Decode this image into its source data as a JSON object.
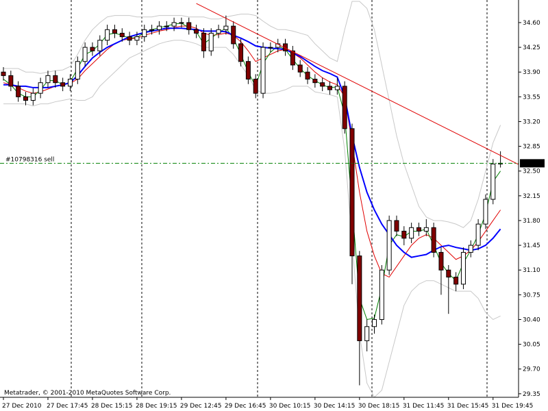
{
  "chart_data": {
    "type": "candlestick",
    "categories": [
      "27 Dec 2010",
      null,
      null,
      null,
      null,
      null,
      "27 Dec 17:45",
      null,
      null,
      null,
      null,
      null,
      "28 Dec 15:15",
      null,
      null,
      null,
      null,
      null,
      "28 Dec 19:15",
      null,
      null,
      null,
      null,
      null,
      "29 Dec 12:45",
      null,
      null,
      null,
      null,
      null,
      "29 Dec 16:45",
      null,
      null,
      null,
      null,
      null,
      "30 Dec 10:15",
      null,
      null,
      null,
      null,
      null,
      "30 Dec 14:15",
      null,
      null,
      null,
      null,
      null,
      "30 Dec 18:15",
      null,
      null,
      null,
      null,
      null,
      "31 Dec 11:45",
      null,
      null,
      null,
      null,
      null,
      "31 Dec 15:45",
      null,
      null,
      null,
      null,
      null,
      "31 Dec 19:45",
      null
    ],
    "open": [
      33.9,
      33.85,
      33.7,
      33.55,
      33.5,
      33.6,
      33.75,
      33.85,
      33.75,
      33.7,
      33.8,
      34.05,
      34.25,
      34.2,
      34.35,
      34.5,
      34.45,
      34.4,
      34.35,
      34.4,
      34.5,
      34.5,
      34.55,
      34.55,
      34.6,
      34.6,
      34.5,
      34.45,
      34.2,
      34.45,
      34.5,
      34.55,
      34.3,
      34.05,
      33.8,
      33.6,
      34.25,
      34.25,
      34.3,
      34.2,
      34.0,
      33.9,
      33.8,
      33.75,
      33.7,
      33.65,
      33.7,
      33.1,
      31.3,
      30.1,
      30.3,
      30.4,
      31.1,
      31.8,
      31.65,
      31.55,
      31.7,
      31.65,
      31.7,
      31.35,
      31.1,
      31.0,
      30.9,
      31.35,
      31.45,
      31.75,
      32.1,
      32.6
    ],
    "high": [
      33.97,
      33.92,
      33.77,
      33.62,
      33.67,
      33.82,
      33.92,
      33.92,
      33.82,
      33.87,
      34.12,
      34.32,
      34.32,
      34.42,
      34.57,
      34.57,
      34.52,
      34.47,
      34.47,
      34.57,
      34.57,
      34.62,
      34.62,
      34.67,
      34.67,
      34.67,
      34.57,
      34.52,
      34.52,
      34.57,
      34.7,
      34.62,
      34.37,
      34.12,
      33.87,
      34.32,
      34.32,
      34.37,
      34.37,
      34.27,
      34.07,
      33.97,
      33.87,
      33.82,
      33.77,
      33.82,
      33.77,
      33.17,
      31.37,
      30.4,
      30.47,
      31.17,
      31.87,
      31.87,
      31.72,
      31.77,
      31.77,
      31.82,
      31.77,
      31.42,
      31.17,
      31.07,
      31.42,
      31.52,
      31.82,
      32.17,
      32.67,
      32.78
    ],
    "low": [
      33.78,
      33.63,
      33.48,
      33.43,
      33.43,
      33.53,
      33.68,
      33.68,
      33.63,
      33.63,
      33.73,
      33.98,
      34.13,
      34.13,
      34.28,
      34.38,
      34.33,
      34.28,
      34.28,
      34.33,
      34.43,
      34.43,
      34.48,
      34.48,
      34.53,
      34.43,
      34.38,
      34.1,
      34.13,
      34.38,
      34.43,
      34.23,
      33.98,
      33.73,
      33.53,
      33.53,
      34.18,
      34.18,
      34.13,
      33.93,
      33.83,
      33.73,
      33.68,
      33.63,
      33.58,
      33.58,
      33.03,
      30.9,
      29.47,
      29.95,
      30.2,
      30.33,
      31.03,
      31.58,
      31.45,
      31.48,
      31.58,
      31.58,
      31.28,
      30.75,
      30.48,
      30.8,
      30.83,
      31.28,
      31.38,
      31.68,
      32.03,
      32.55
    ],
    "close": [
      33.85,
      33.7,
      33.55,
      33.5,
      33.6,
      33.75,
      33.85,
      33.75,
      33.7,
      33.8,
      34.05,
      34.25,
      34.2,
      34.35,
      34.5,
      34.45,
      34.4,
      34.35,
      34.4,
      34.5,
      34.5,
      34.55,
      34.55,
      34.6,
      34.6,
      34.5,
      34.45,
      34.2,
      34.45,
      34.5,
      34.55,
      34.3,
      34.05,
      33.8,
      33.6,
      34.25,
      34.25,
      34.3,
      34.2,
      34.0,
      33.9,
      33.8,
      33.75,
      33.7,
      33.65,
      33.7,
      33.1,
      31.3,
      30.1,
      30.3,
      30.4,
      31.1,
      31.8,
      31.65,
      31.55,
      31.7,
      31.65,
      31.7,
      31.35,
      31.1,
      31.0,
      30.9,
      31.35,
      31.45,
      31.75,
      32.1,
      32.6,
      32.61
    ],
    "up_color": "#ffffff",
    "down_color": "#800000",
    "wick_color": "#000000",
    "series": [
      {
        "color": "#c8c8c8",
        "width": 1,
        "values": [
          33.95,
          33.95,
          33.95,
          33.9,
          33.9,
          33.88,
          33.9,
          33.92,
          33.93,
          33.98,
          34.15,
          34.35,
          34.5,
          34.6,
          34.68,
          34.7,
          34.7,
          34.7,
          34.68,
          34.68,
          34.68,
          34.7,
          34.7,
          34.7,
          34.7,
          34.68,
          34.68,
          34.68,
          34.65,
          34.65,
          34.68,
          34.7,
          34.72,
          34.72,
          34.7,
          34.62,
          34.55,
          34.5,
          34.5,
          34.48,
          34.45,
          34.42,
          34.3,
          34.2,
          34.1,
          34.05,
          34.5,
          34.9,
          34.9,
          34.8,
          34.5,
          34.0,
          33.5,
          33.0,
          32.6,
          32.3,
          32.0,
          31.85,
          31.8,
          31.8,
          31.78,
          31.75,
          31.7,
          31.8,
          32.1,
          32.5,
          32.9,
          33.15
        ]
      },
      {
        "color": "#c8c8c8",
        "width": 1,
        "values": [
          33.45,
          33.45,
          33.45,
          33.45,
          33.42,
          33.45,
          33.45,
          33.48,
          33.5,
          33.52,
          33.5,
          33.5,
          33.55,
          33.7,
          33.8,
          33.9,
          34.0,
          34.1,
          34.15,
          34.2,
          34.25,
          34.3,
          34.33,
          34.35,
          34.35,
          34.33,
          34.3,
          34.25,
          34.25,
          34.25,
          34.25,
          34.15,
          34.0,
          33.85,
          33.65,
          33.6,
          33.6,
          33.62,
          33.65,
          33.7,
          33.7,
          33.7,
          33.62,
          33.6,
          33.58,
          33.55,
          32.8,
          31.5,
          30.2,
          29.5,
          29.3,
          29.4,
          29.8,
          30.2,
          30.6,
          30.8,
          30.9,
          30.95,
          30.95,
          30.9,
          30.85,
          30.8,
          30.8,
          30.8,
          30.7,
          30.5,
          30.4,
          30.45
        ]
      },
      {
        "color": "#e00000",
        "width": 1,
        "values": [
          33.75,
          33.72,
          33.68,
          33.63,
          33.6,
          33.62,
          33.66,
          33.7,
          33.72,
          33.74,
          33.8,
          33.92,
          34.02,
          34.12,
          34.22,
          34.3,
          34.35,
          34.37,
          34.38,
          34.42,
          34.45,
          34.48,
          34.5,
          34.53,
          34.55,
          34.55,
          34.52,
          34.45,
          34.42,
          34.43,
          34.45,
          34.42,
          34.33,
          34.2,
          34.05,
          34.1,
          34.15,
          34.2,
          34.22,
          34.17,
          34.1,
          34.0,
          33.9,
          33.82,
          33.76,
          33.72,
          33.55,
          32.9,
          32.2,
          31.65,
          31.3,
          31.05,
          31.0,
          31.15,
          31.3,
          31.45,
          31.55,
          31.6,
          31.55,
          31.45,
          31.35,
          31.25,
          31.3,
          31.38,
          31.5,
          31.65,
          31.8,
          31.95
        ]
      },
      {
        "color": "#008000",
        "width": 1,
        "values": [
          33.8,
          33.72,
          33.6,
          33.55,
          33.55,
          33.65,
          33.78,
          33.78,
          33.72,
          33.76,
          33.95,
          34.15,
          34.2,
          34.3,
          34.43,
          34.45,
          34.42,
          34.38,
          34.39,
          34.46,
          34.5,
          34.53,
          34.55,
          34.58,
          34.59,
          34.53,
          34.47,
          34.3,
          34.38,
          34.46,
          34.52,
          34.38,
          34.15,
          33.9,
          33.7,
          34.02,
          34.18,
          34.27,
          34.22,
          34.08,
          33.95,
          33.85,
          33.78,
          33.72,
          33.68,
          33.69,
          33.3,
          32.0,
          30.7,
          30.4,
          30.42,
          30.85,
          31.45,
          31.6,
          31.57,
          31.65,
          31.65,
          31.68,
          31.45,
          31.2,
          31.05,
          30.95,
          31.2,
          31.38,
          31.6,
          31.9,
          32.35,
          32.5
        ]
      },
      {
        "color": "#0000ff",
        "width": 2,
        "values": [
          33.72,
          33.72,
          33.7,
          33.7,
          33.68,
          33.68,
          33.68,
          33.7,
          33.72,
          33.75,
          33.85,
          33.98,
          34.1,
          34.18,
          34.25,
          34.3,
          34.35,
          34.4,
          34.43,
          34.46,
          34.48,
          34.5,
          34.52,
          34.52,
          34.52,
          34.51,
          34.5,
          34.48,
          34.48,
          34.48,
          34.47,
          34.42,
          34.38,
          34.33,
          34.27,
          34.25,
          34.24,
          34.23,
          34.22,
          34.17,
          34.12,
          34.05,
          33.98,
          33.92,
          33.88,
          33.83,
          33.55,
          33.0,
          32.55,
          32.2,
          31.95,
          31.75,
          31.6,
          31.45,
          31.35,
          31.28,
          31.3,
          31.32,
          31.38,
          31.43,
          31.45,
          31.42,
          31.4,
          31.38,
          31.4,
          31.45,
          31.55,
          31.68
        ]
      }
    ],
    "ylim": [
      29.3,
      34.9
    ],
    "yticks": [
      {
        "value": 34.6,
        "label": "34.60"
      },
      34.25,
      {
        "value": 33.9,
        "label": "33.90"
      },
      33.55,
      {
        "value": 33.2,
        "label": "33.20"
      },
      32.85,
      {
        "value": 32.5,
        "label": "32.50"
      },
      32.15,
      {
        "value": 31.8,
        "label": "31.80"
      },
      31.45,
      {
        "value": 31.1,
        "label": "31.10"
      },
      30.75,
      {
        "value": 30.4,
        "label": "30.40"
      },
      30.05,
      {
        "value": 29.7,
        "label": "29.70"
      },
      29.35
    ],
    "trendline": {
      "x": [
        26,
        69.5
      ],
      "y": [
        34.87,
        32.59
      ],
      "color": "#e00000"
    },
    "order": {
      "label": "#10798316 sell",
      "price": 32.61,
      "color": "#008000"
    },
    "footer": "Metatrader, © 2001-2010 MetaQuotes Software Corp."
  }
}
